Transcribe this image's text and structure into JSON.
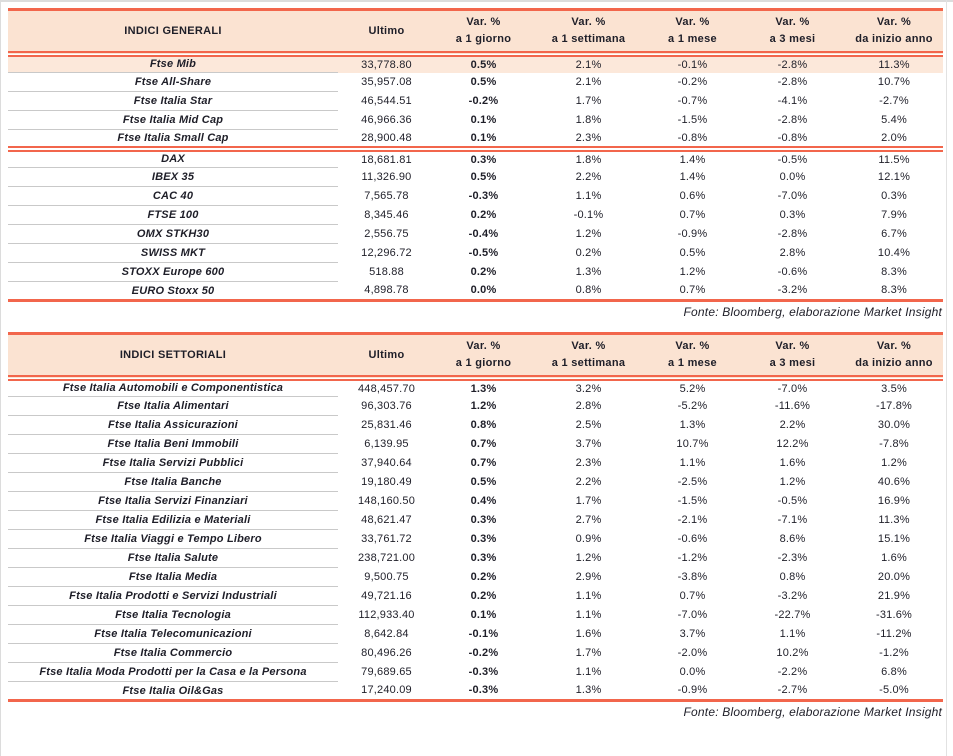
{
  "colors": {
    "accent_coral": "#f2664c",
    "header_bg": "#fbe3d2",
    "highlight_row_bg": "#fce8da",
    "row_separator_gray": "#c9c9c9",
    "text": "#1e1e28"
  },
  "tables": [
    {
      "id": "generali",
      "title": "INDICI GENERALI",
      "value_col_header": "Ultimo",
      "var_col_headers": [
        {
          "line1": "Var. %",
          "line2": "a 1 giorno"
        },
        {
          "line1": "Var. %",
          "line2": "a 1 settimana"
        },
        {
          "line1": "Var. %",
          "line2": "a 1 mese"
        },
        {
          "line1": "Var. %",
          "line2": "a 3 mesi"
        },
        {
          "line1": "Var. %",
          "line2": "da inizio anno"
        }
      ],
      "sections": [
        {
          "rows": [
            {
              "name": "Ftse Mib",
              "ultimo": "33,778.80",
              "vars": [
                "0.5%",
                "2.1%",
                "-0.1%",
                "-2.8%",
                "11.3%"
              ],
              "highlight": true
            },
            {
              "name": "Ftse All-Share",
              "ultimo": "35,957.08",
              "vars": [
                "0.5%",
                "2.1%",
                "-0.2%",
                "-2.8%",
                "10.7%"
              ],
              "highlight": false
            },
            {
              "name": "Ftse Italia Star",
              "ultimo": "46,544.51",
              "vars": [
                "-0.2%",
                "1.7%",
                "-0.7%",
                "-4.1%",
                "-2.7%"
              ],
              "highlight": false
            },
            {
              "name": "Ftse Italia Mid Cap",
              "ultimo": "46,966.36",
              "vars": [
                "0.1%",
                "1.8%",
                "-1.5%",
                "-2.8%",
                "5.4%"
              ],
              "highlight": false
            },
            {
              "name": "Ftse Italia Small Cap",
              "ultimo": "28,900.48",
              "vars": [
                "0.1%",
                "2.3%",
                "-0.8%",
                "-0.8%",
                "2.0%"
              ],
              "highlight": false
            }
          ]
        },
        {
          "rows": [
            {
              "name": "DAX",
              "ultimo": "18,681.81",
              "vars": [
                "0.3%",
                "1.8%",
                "1.4%",
                "-0.5%",
                "11.5%"
              ],
              "highlight": false
            },
            {
              "name": "IBEX 35",
              "ultimo": "11,326.90",
              "vars": [
                "0.5%",
                "2.2%",
                "1.4%",
                "0.0%",
                "12.1%"
              ],
              "highlight": false
            },
            {
              "name": "CAC 40",
              "ultimo": "7,565.78",
              "vars": [
                "-0.3%",
                "1.1%",
                "0.6%",
                "-7.0%",
                "0.3%"
              ],
              "highlight": false
            },
            {
              "name": "FTSE 100",
              "ultimo": "8,345.46",
              "vars": [
                "0.2%",
                "-0.1%",
                "0.7%",
                "0.3%",
                "7.9%"
              ],
              "highlight": false
            },
            {
              "name": "OMX STKH30",
              "ultimo": "2,556.75",
              "vars": [
                "-0.4%",
                "1.2%",
                "-0.9%",
                "-2.8%",
                "6.7%"
              ],
              "highlight": false
            },
            {
              "name": "SWISS MKT",
              "ultimo": "12,296.72",
              "vars": [
                "-0.5%",
                "0.2%",
                "0.5%",
                "2.8%",
                "10.4%"
              ],
              "highlight": false
            },
            {
              "name": "STOXX Europe 600",
              "ultimo": "518.88",
              "vars": [
                "0.2%",
                "1.3%",
                "1.2%",
                "-0.6%",
                "8.3%"
              ],
              "highlight": false
            },
            {
              "name": "EURO Stoxx 50",
              "ultimo": "4,898.78",
              "vars": [
                "0.0%",
                "0.8%",
                "0.7%",
                "-3.2%",
                "8.3%"
              ],
              "highlight": false
            }
          ]
        }
      ],
      "source": "Fonte: Bloomberg, elaborazione Market Insight"
    },
    {
      "id": "settoriali",
      "title": "INDICI SETTORIALI",
      "value_col_header": "Ultimo",
      "var_col_headers": [
        {
          "line1": "Var. %",
          "line2": "a 1 giorno"
        },
        {
          "line1": "Var. %",
          "line2": "a 1 settimana"
        },
        {
          "line1": "Var. %",
          "line2": "a 1 mese"
        },
        {
          "line1": "Var. %",
          "line2": "a 3 mesi"
        },
        {
          "line1": "Var. %",
          "line2": "da inizio anno"
        }
      ],
      "sections": [
        {
          "rows": [
            {
              "name": "Ftse Italia Automobili e Componentistica",
              "ultimo": "448,457.70",
              "vars": [
                "1.3%",
                "3.2%",
                "5.2%",
                "-7.0%",
                "3.5%"
              ],
              "highlight": false
            },
            {
              "name": "Ftse Italia Alimentari",
              "ultimo": "96,303.76",
              "vars": [
                "1.2%",
                "2.8%",
                "-5.2%",
                "-11.6%",
                "-17.8%"
              ],
              "highlight": false
            },
            {
              "name": "Ftse Italia Assicurazioni",
              "ultimo": "25,831.46",
              "vars": [
                "0.8%",
                "2.5%",
                "1.3%",
                "2.2%",
                "30.0%"
              ],
              "highlight": false
            },
            {
              "name": "Ftse Italia Beni Immobili",
              "ultimo": "6,139.95",
              "vars": [
                "0.7%",
                "3.7%",
                "10.7%",
                "12.2%",
                "-7.8%"
              ],
              "highlight": false
            },
            {
              "name": "Ftse Italia Servizi Pubblici",
              "ultimo": "37,940.64",
              "vars": [
                "0.7%",
                "2.3%",
                "1.1%",
                "1.6%",
                "1.2%"
              ],
              "highlight": false
            },
            {
              "name": "Ftse Italia Banche",
              "ultimo": "19,180.49",
              "vars": [
                "0.5%",
                "2.2%",
                "-2.5%",
                "1.2%",
                "40.6%"
              ],
              "highlight": false
            },
            {
              "name": "Ftse Italia Servizi Finanziari",
              "ultimo": "148,160.50",
              "vars": [
                "0.4%",
                "1.7%",
                "-1.5%",
                "-0.5%",
                "16.9%"
              ],
              "highlight": false
            },
            {
              "name": "Ftse Italia Edilizia e Materiali",
              "ultimo": "48,621.47",
              "vars": [
                "0.3%",
                "2.7%",
                "-2.1%",
                "-7.1%",
                "11.3%"
              ],
              "highlight": false
            },
            {
              "name": "Ftse Italia Viaggi e Tempo Libero",
              "ultimo": "33,761.72",
              "vars": [
                "0.3%",
                "0.9%",
                "-0.6%",
                "8.6%",
                "15.1%"
              ],
              "highlight": false
            },
            {
              "name": "Ftse Italia Salute",
              "ultimo": "238,721.00",
              "vars": [
                "0.3%",
                "1.2%",
                "-1.2%",
                "-2.3%",
                "1.6%"
              ],
              "highlight": false
            },
            {
              "name": "Ftse Italia Media",
              "ultimo": "9,500.75",
              "vars": [
                "0.2%",
                "2.9%",
                "-3.8%",
                "0.8%",
                "20.0%"
              ],
              "highlight": false
            },
            {
              "name": "Ftse Italia Prodotti e Servizi Industriali",
              "ultimo": "49,721.16",
              "vars": [
                "0.2%",
                "1.1%",
                "0.7%",
                "-3.2%",
                "21.9%"
              ],
              "highlight": false
            },
            {
              "name": "Ftse Italia Tecnologia",
              "ultimo": "112,933.40",
              "vars": [
                "0.1%",
                "1.1%",
                "-7.0%",
                "-22.7%",
                "-31.6%"
              ],
              "highlight": false
            },
            {
              "name": "Ftse Italia Telecomunicazioni",
              "ultimo": "8,642.84",
              "vars": [
                "-0.1%",
                "1.6%",
                "3.7%",
                "1.1%",
                "-11.2%"
              ],
              "highlight": false
            },
            {
              "name": "Ftse Italia Commercio",
              "ultimo": "80,496.26",
              "vars": [
                "-0.2%",
                "1.7%",
                "-2.0%",
                "10.2%",
                "-1.2%"
              ],
              "highlight": false
            },
            {
              "name": "Ftse Italia Moda Prodotti per la Casa e la Persona",
              "ultimo": "79,689.65",
              "vars": [
                "-0.3%",
                "1.1%",
                "0.0%",
                "-2.2%",
                "6.8%"
              ],
              "highlight": false
            },
            {
              "name": "Ftse Italia Oil&Gas",
              "ultimo": "17,240.09",
              "vars": [
                "-0.3%",
                "1.3%",
                "-0.9%",
                "-2.7%",
                "-5.0%"
              ],
              "highlight": false
            }
          ]
        }
      ],
      "source": "Fonte: Bloomberg, elaborazione Market Insight"
    }
  ]
}
